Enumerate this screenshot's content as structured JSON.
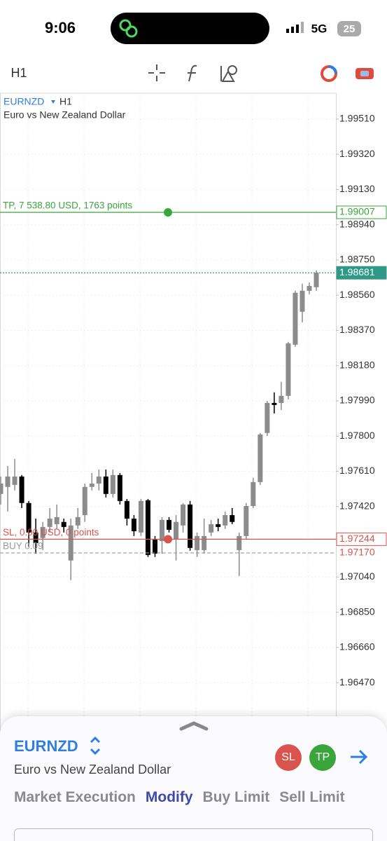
{
  "status_bar": {
    "time": "9:06",
    "network": "5G",
    "battery": "25"
  },
  "toolbar": {
    "timeframe": "H1"
  },
  "chart_data": {
    "type": "candlestick",
    "symbol": "EURNZD",
    "timeframe": "H1",
    "description": "Euro vs New Zealand Dollar",
    "ylim": [
      1.9627,
      1.99642
    ],
    "yticks": [
      {
        "value": 1.9951,
        "label": "1.99510"
      },
      {
        "value": 1.9932,
        "label": "1.99320"
      },
      {
        "value": 1.9913,
        "label": "1.99130"
      },
      {
        "value": 1.9894,
        "label": "1.98940"
      },
      {
        "value": 1.9875,
        "label": "1.98750"
      },
      {
        "value": 1.9856,
        "label": "1.98560"
      },
      {
        "value": 1.9837,
        "label": "1.98370"
      },
      {
        "value": 1.9818,
        "label": "1.98180"
      },
      {
        "value": 1.9799,
        "label": "1.97990"
      },
      {
        "value": 1.978,
        "label": "1.97800"
      },
      {
        "value": 1.9761,
        "label": "1.97610"
      },
      {
        "value": 1.9742,
        "label": "1.97420"
      },
      {
        "value": 1.9704,
        "label": "1.97040"
      },
      {
        "value": 1.9685,
        "label": "1.96850"
      },
      {
        "value": 1.9666,
        "label": "1.96660"
      },
      {
        "value": 1.9647,
        "label": "1.96470"
      }
    ],
    "grid": true,
    "up_color": "#8c8c8c",
    "down_color": "#000000",
    "open": [
      1.97488,
      1.97526,
      1.97537,
      1.97582,
      1.97439,
      1.9728,
      1.9725,
      1.9731,
      1.97325,
      1.97337,
      1.97129,
      1.97318,
      1.97374,
      1.97526,
      1.97544,
      1.97582,
      1.97488,
      1.9759,
      1.9745,
      1.97355,
      1.9728,
      1.97454,
      1.97242,
      1.97234,
      1.97348,
      1.97242,
      1.97318,
      1.97431,
      1.97185,
      1.97185,
      1.9728,
      1.97325,
      1.97318,
      1.97374,
      1.97185,
      1.97261,
      1.97423,
      1.97552,
      1.97817,
      1.97979,
      1.97979,
      1.98017,
      1.98293,
      1.98471,
      1.98584,
      1.98603
    ],
    "high": [
      1.97582,
      1.97639,
      1.97677,
      1.9759,
      1.9745,
      1.97355,
      1.97337,
      1.97412,
      1.97431,
      1.97355,
      1.97355,
      1.97412,
      1.97544,
      1.97601,
      1.9762,
      1.9762,
      1.9762,
      1.97601,
      1.97461,
      1.97374,
      1.97461,
      1.97461,
      1.97261,
      1.97363,
      1.97363,
      1.97374,
      1.97439,
      1.9745,
      1.9728,
      1.97355,
      1.97348,
      1.97355,
      1.97393,
      1.97412,
      1.9728,
      1.97439,
      1.97575,
      1.97817,
      1.9799,
      1.98036,
      1.98093,
      1.98308,
      1.98584,
      1.98622,
      1.98629,
      1.98694
    ],
    "low": [
      1.97431,
      1.97393,
      1.97507,
      1.97412,
      1.97204,
      1.97166,
      1.97185,
      1.9728,
      1.97299,
      1.9728,
      1.97023,
      1.97299,
      1.97337,
      1.97507,
      1.97507,
      1.97469,
      1.97469,
      1.97431,
      1.97318,
      1.97261,
      1.97261,
      1.97148,
      1.97148,
      1.97166,
      1.9728,
      1.97129,
      1.9728,
      1.97182,
      1.97148,
      1.97166,
      1.97261,
      1.97287,
      1.97299,
      1.97325,
      1.97045,
      1.97242,
      1.97412,
      1.97537,
      1.97801,
      1.97922,
      1.97941,
      1.97998,
      1.98282,
      1.98414,
      1.98565,
      1.98584
    ],
    "close": [
      1.97544,
      1.97582,
      1.97582,
      1.97439,
      1.9728,
      1.97223,
      1.9731,
      1.97355,
      1.97363,
      1.9731,
      1.97318,
      1.97363,
      1.97526,
      1.97544,
      1.97582,
      1.97488,
      1.9759,
      1.9745,
      1.97355,
      1.97287,
      1.9745,
      1.97159,
      1.97166,
      1.97348,
      1.97295,
      1.97337,
      1.97431,
      1.97197,
      1.97261,
      1.97261,
      1.97325,
      1.9731,
      1.97374,
      1.97337,
      1.97261,
      1.97423,
      1.97552,
      1.97809,
      1.97979,
      1.97968,
      1.98017,
      1.983,
      1.98573,
      1.98584,
      1.9861,
      1.98681
    ],
    "price_lines": [
      {
        "label": "TP, 7 538.80 USD, 1763 points",
        "value": 1.99007,
        "color": "#3aa53a",
        "style": "solid",
        "badge": "outline",
        "dot": true
      },
      {
        "value": 1.98681,
        "color": "#2e9a85",
        "style": "dotted",
        "badge": "filled"
      },
      {
        "label": "SL, 0.00 USD, 0 points",
        "value": 1.97244,
        "color": "#d9534f",
        "style": "solid",
        "badge": "outline",
        "dot": true
      },
      {
        "label": "BUY 0.09",
        "value": {
          "value": 1.9717,
          "label": "1.97170"
        },
        "color": "#9a9a9a",
        "style": "dashed",
        "badge": "plain",
        "badge_color": "#d9534f"
      }
    ]
  },
  "order_panel": {
    "symbol": "EURNZD",
    "description": "Euro vs New Zealand Dollar",
    "sl": "SL",
    "tp": "TP",
    "tabs": [
      "Market Execution",
      "Modify",
      "Buy Limit",
      "Sell Limit"
    ],
    "active_tab": 1
  }
}
